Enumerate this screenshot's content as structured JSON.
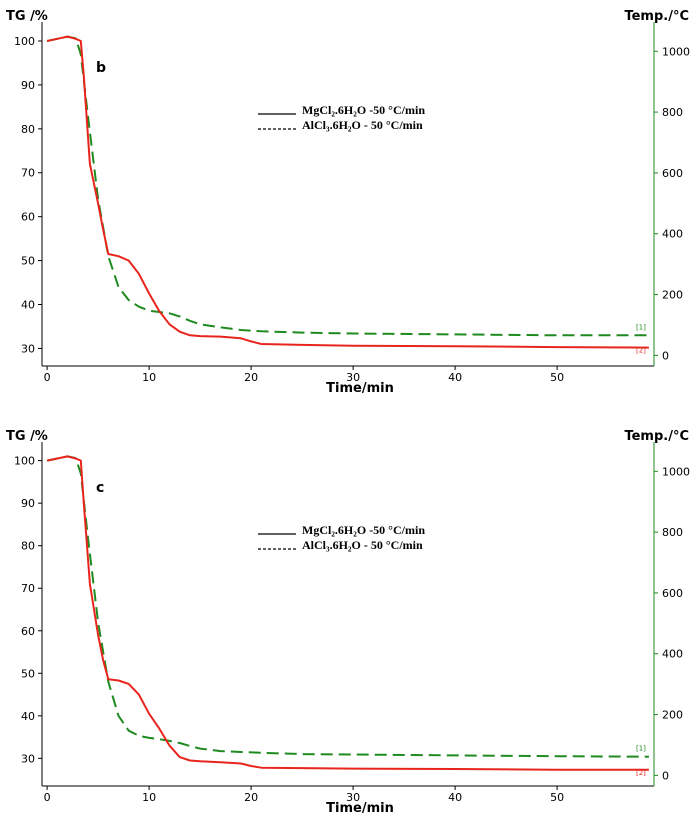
{
  "colors": {
    "series1": "#1f8a1f",
    "series2": "#e8251d",
    "axis_left": "#000000",
    "axis_right": "#1f8a1f"
  },
  "chart_data": [
    {
      "type": "line",
      "panel_label": "b",
      "ylabel": "TG /%",
      "y2label": "Temp./°C",
      "xlabel": "Time/min",
      "xlim": [
        -0.5,
        59.5
      ],
      "ylim": [
        26,
        102.5
      ],
      "y2lim": [
        -35,
        1070
      ],
      "xticks": [
        0,
        10,
        20,
        30,
        40,
        50
      ],
      "yticks": [
        30,
        40,
        50,
        60,
        70,
        80,
        90,
        100
      ],
      "y2ticks": [
        0,
        200,
        400,
        600,
        800,
        1000
      ],
      "grid": false,
      "legend_position": "top-center",
      "legend": [
        {
          "label": "MgCl₂.6H₂O -50 °C/min",
          "line_style": "solid"
        },
        {
          "label": "AlCl₃.6H₂O - 50 °C/min",
          "line_style": "dashed"
        }
      ],
      "series": [
        {
          "tag": "[1]",
          "style": "dashed",
          "color": "#1f8a1f",
          "x": [
            0,
            1,
            2,
            2.8,
            3.3,
            4,
            5,
            6,
            7,
            8,
            9,
            10,
            11,
            12,
            13,
            14,
            15,
            17,
            19,
            21,
            25,
            30,
            40,
            50,
            59
          ],
          "y": [
            100,
            100.5,
            101,
            100.6,
            97,
            83,
            64,
            51,
            44,
            41,
            39.5,
            38.6,
            38.3,
            38,
            37.3,
            36.3,
            35.5,
            34.8,
            34.2,
            33.9,
            33.6,
            33.4,
            33.2,
            33,
            33
          ]
        },
        {
          "tag": "[2]",
          "style": "solid",
          "color": "#e8251d",
          "x": [
            0,
            1,
            2,
            2.8,
            3.3,
            3.6,
            4.2,
            5,
            5.5,
            6,
            7,
            8,
            9,
            10,
            11,
            12,
            13,
            14,
            15,
            17,
            19,
            20,
            21,
            25,
            30,
            40,
            50,
            59
          ],
          "y": [
            100,
            100.5,
            101,
            100.5,
            100,
            92,
            72,
            63,
            57,
            51.5,
            51,
            50,
            47,
            42.5,
            38.5,
            35.5,
            33.8,
            33,
            32.8,
            32.7,
            32.3,
            31.6,
            31,
            30.8,
            30.6,
            30.5,
            30.3,
            30.2
          ]
        }
      ]
    },
    {
      "type": "line",
      "panel_label": "c",
      "ylabel": "TG /%",
      "y2label": "Temp./°C",
      "xlabel": "Time/min",
      "xlim": [
        -0.5,
        59.5
      ],
      "ylim": [
        23.5,
        102.5
      ],
      "y2lim": [
        -35,
        1070
      ],
      "xticks": [
        0,
        10,
        20,
        30,
        40,
        50
      ],
      "yticks": [
        30,
        40,
        50,
        60,
        70,
        80,
        90,
        100
      ],
      "y2ticks": [
        0,
        200,
        400,
        600,
        800,
        1000
      ],
      "grid": false,
      "legend_position": "top-center",
      "legend": [
        {
          "label": "MgCl₂.6H₂O -50 °C/min",
          "line_style": "solid"
        },
        {
          "label": "AlCl₃.6H₂O - 50 °C/min",
          "line_style": "dashed"
        }
      ],
      "series": [
        {
          "tag": "[1]",
          "style": "dashed",
          "color": "#1f8a1f",
          "x": [
            0,
            1,
            2,
            2.8,
            3.3,
            4,
            5,
            6,
            7,
            8,
            9,
            10,
            11,
            12,
            13,
            14,
            15,
            17,
            19,
            21,
            25,
            30,
            40,
            50,
            59
          ],
          "y": [
            100,
            100.5,
            101,
            100.6,
            97,
            82,
            62,
            48,
            40,
            36.5,
            35.3,
            34.8,
            34.5,
            34.1,
            33.6,
            32.9,
            32.3,
            31.7,
            31.5,
            31.3,
            31,
            30.9,
            30.7,
            30.5,
            30.4
          ]
        },
        {
          "tag": "[2]",
          "style": "solid",
          "color": "#e8251d",
          "x": [
            0,
            1,
            2,
            2.8,
            3.3,
            3.6,
            4.2,
            5,
            5.5,
            6,
            7,
            8,
            9,
            10,
            11,
            12,
            13,
            14,
            15,
            17,
            19,
            20,
            21,
            25,
            30,
            40,
            50,
            59
          ],
          "y": [
            100,
            100.5,
            101,
            100.5,
            100,
            90,
            71,
            59,
            53,
            48.6,
            48.3,
            47.5,
            45,
            40.5,
            37,
            33,
            30.3,
            29.5,
            29.3,
            29.1,
            28.8,
            28.2,
            27.8,
            27.7,
            27.6,
            27.5,
            27.3,
            27.3
          ]
        }
      ]
    }
  ]
}
